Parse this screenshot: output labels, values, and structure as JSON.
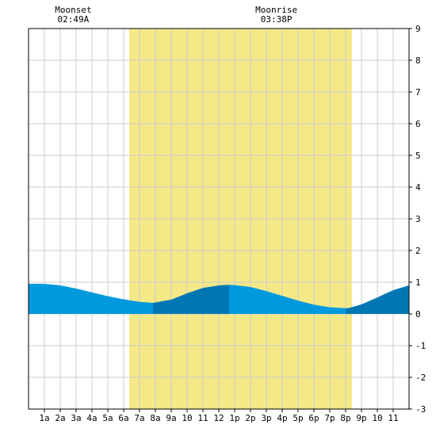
{
  "moon": {
    "moonset_label": "Moonset",
    "moonset_time": "02:49A",
    "moonrise_label": "Moonrise",
    "moonrise_time": "03:38P"
  },
  "chart_data": {
    "type": "area",
    "title": "",
    "xlabel": "",
    "ylabel": "",
    "xlim": [
      0,
      24
    ],
    "ylim": [
      -3,
      9
    ],
    "grid": true,
    "x_tick_labels": [
      "1a",
      "2a",
      "3a",
      "4a",
      "5a",
      "6a",
      "7a",
      "8a",
      "9a",
      "10",
      "11",
      "12",
      "1p",
      "2p",
      "3p",
      "4p",
      "5p",
      "6p",
      "7p",
      "8p",
      "9p",
      "10",
      "11"
    ],
    "y_tick_labels": [
      "9",
      "8",
      "7",
      "6",
      "5",
      "4",
      "3",
      "2",
      "1",
      "0",
      "-1",
      "-2",
      "-3"
    ],
    "daylight_hours": [
      6.35,
      20.4
    ],
    "moonset_hour": 2.82,
    "moonrise_hour": 15.63,
    "tide_series": {
      "x": [
        0,
        1,
        2,
        3,
        4,
        5,
        6,
        7,
        7.85,
        9,
        10,
        11,
        12,
        12.65,
        13,
        14,
        15,
        16,
        17,
        18,
        19,
        20,
        20.15,
        21,
        22,
        23,
        24
      ],
      "y": [
        0.95,
        0.95,
        0.9,
        0.8,
        0.68,
        0.56,
        0.46,
        0.38,
        0.35,
        0.45,
        0.65,
        0.82,
        0.9,
        0.92,
        0.91,
        0.85,
        0.72,
        0.57,
        0.42,
        0.29,
        0.21,
        0.18,
        0.18,
        0.3,
        0.52,
        0.75,
        0.9
      ]
    },
    "colors": {
      "tide_light": "#0099dd",
      "tide_dark": "#0077b3",
      "daylight": "#f5e987",
      "grid": "#cccccc",
      "frame": "#000000"
    }
  }
}
